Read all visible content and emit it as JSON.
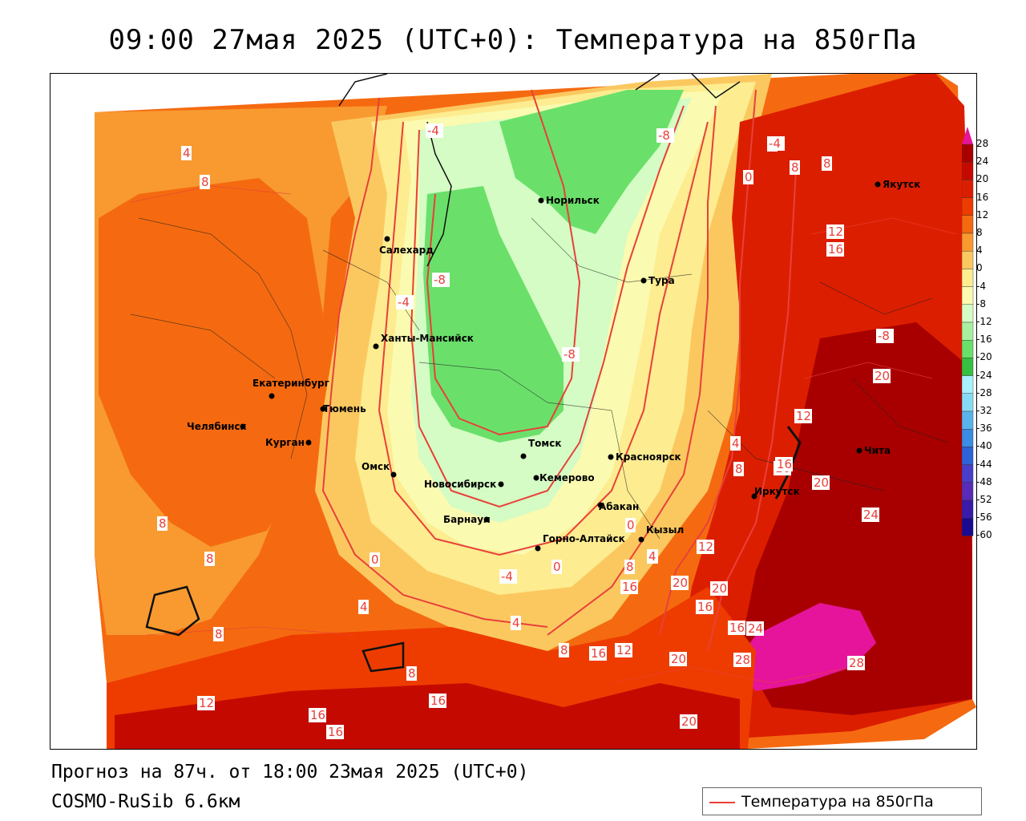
{
  "title": "09:00 27мая 2025 (UTC+0): Температура на 850гПа",
  "footer": {
    "forecast": "Прогноз на 87ч. от 18:00 23мая 2025 (UTC+0)",
    "model": "COSMO-RuSib 6.6км"
  },
  "legend": {
    "line_label": "Температура на 850гПа",
    "line_color": "#e8403a"
  },
  "colorbar": {
    "ticks": [
      "28",
      "24",
      "20",
      "16",
      "12",
      "8",
      "4",
      "0",
      "-4",
      "-8",
      "-12",
      "-16",
      "-20",
      "-24",
      "-28",
      "-32",
      "-36",
      "-40",
      "-44",
      "-48",
      "-52",
      "-56",
      "-60"
    ],
    "colors": [
      "#a80000",
      "#c40a00",
      "#dc1e00",
      "#ee3c00",
      "#f56a10",
      "#f89a30",
      "#fbc860",
      "#fdec90",
      "#fafab0",
      "#d4fcc4",
      "#a8f0a0",
      "#6ae06a",
      "#36c040",
      "#a8f0ff",
      "#86dcf4",
      "#5ab4ec",
      "#3a8ce4",
      "#2e62d8",
      "#4a3ec8",
      "#5a2ab8",
      "#3a1aa8",
      "#1a0a90"
    ]
  },
  "cities": [
    {
      "name": "Норильск"
    },
    {
      "name": "Якутск"
    },
    {
      "name": "Салехард"
    },
    {
      "name": "Тура"
    },
    {
      "name": "Ханты-Мансийск"
    },
    {
      "name": "Екатеринбург"
    },
    {
      "name": "Тюмень"
    },
    {
      "name": "Челябинск"
    },
    {
      "name": "Курган"
    },
    {
      "name": "Омск"
    },
    {
      "name": "Новосибирск"
    },
    {
      "name": "Томск"
    },
    {
      "name": "Кемерово"
    },
    {
      "name": "Красноярск"
    },
    {
      "name": "Абакан"
    },
    {
      "name": "Барнаул"
    },
    {
      "name": "Горно-Алтайск"
    },
    {
      "name": "Кызыл"
    },
    {
      "name": "Иркутск"
    },
    {
      "name": "Чита"
    }
  ],
  "isotherm_labels": [
    "4",
    "8",
    "-4",
    "-8",
    "0",
    "4",
    "8",
    "8",
    "12",
    "16",
    "-8",
    "-4",
    "-8",
    "-8",
    "-4",
    "0",
    "16",
    "20",
    "12",
    "4",
    "8",
    "16",
    "20",
    "24",
    "0",
    "4",
    "12",
    "8",
    "16",
    "20",
    "20",
    "16",
    "24",
    "4",
    "0",
    "-4",
    "16",
    "20",
    "12",
    "16",
    "28",
    "28",
    "8",
    "8",
    "12",
    "16",
    "16",
    "16",
    "20",
    "8",
    "4",
    "0",
    "4",
    "8",
    "8"
  ]
}
